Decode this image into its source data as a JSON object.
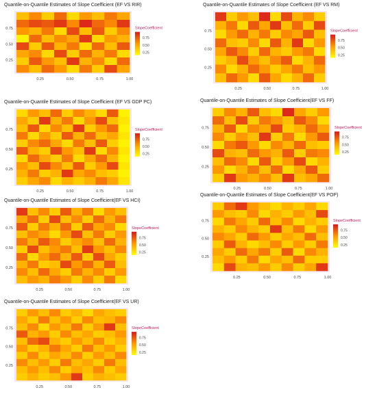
{
  "legend": {
    "title": "SlopeCoefficient",
    "ticks": [
      "0.75",
      "0.50",
      "0.25"
    ],
    "colors": {
      "low": "#ffff00",
      "mid": "#ff9900",
      "high": "#d7191c"
    }
  },
  "axis_ticks": [
    "0.25",
    "0.50",
    "0.75",
    "1.00"
  ],
  "chart_data": [
    {
      "type": "heatmap",
      "title": "Quantile-on-Quantile Estimates of Slope Coefficient (EF VS RIR)",
      "xticks": [
        "0.25",
        "0.50",
        "0.75",
        "1.00"
      ],
      "yticks": [
        "0.75",
        "0.50",
        "0.25"
      ],
      "legend_title": "SlopeCoefficient",
      "legend_ticks": [
        "0.75",
        "0.50",
        "0.25"
      ],
      "cols": 9,
      "rows": 8,
      "values": [
        [
          0.4,
          0.6,
          0.35,
          0.7,
          0.3,
          0.55,
          0.4,
          0.65,
          0.5
        ],
        [
          0.7,
          0.8,
          0.75,
          0.85,
          0.6,
          0.9,
          0.7,
          0.6,
          0.85
        ],
        [
          0.55,
          0.45,
          0.65,
          0.3,
          0.8,
          0.4,
          0.75,
          0.35,
          0.6
        ],
        [
          0.2,
          0.7,
          0.4,
          0.6,
          0.5,
          0.85,
          0.3,
          0.55,
          0.45
        ],
        [
          0.8,
          0.35,
          0.75,
          0.45,
          0.65,
          0.3,
          0.7,
          0.4,
          0.75
        ],
        [
          0.5,
          0.6,
          0.3,
          0.8,
          0.35,
          0.7,
          0.45,
          0.65,
          0.3
        ],
        [
          0.35,
          0.75,
          0.55,
          0.4,
          0.85,
          0.45,
          0.6,
          0.3,
          0.7
        ],
        [
          0.6,
          0.4,
          0.7,
          0.55,
          0.3,
          0.65,
          0.35,
          0.8,
          0.5
        ]
      ]
    },
    {
      "type": "heatmap",
      "title": "Quantile-on-Quantile Estimates of Slope Coefficient (EF VS RM)",
      "xticks": [
        "0.25",
        "0.50",
        "0.75",
        "1.00"
      ],
      "yticks": [
        "0.75",
        "0.50",
        "0.25"
      ],
      "legend_title": "SlopeCoefficient",
      "legend_ticks": [
        "0.75",
        "0.50",
        "0.25"
      ],
      "cols": 10,
      "rows": 8,
      "values": [
        [
          0.85,
          0.35,
          0.55,
          0.4,
          0.9,
          0.3,
          0.8,
          0.45,
          0.6,
          0.35
        ],
        [
          0.45,
          0.65,
          0.3,
          0.75,
          0.5,
          0.85,
          0.4,
          0.7,
          0.35,
          0.8
        ],
        [
          0.3,
          0.55,
          0.7,
          0.45,
          0.65,
          0.35,
          0.6,
          0.5,
          0.75,
          0.4
        ],
        [
          0.7,
          0.4,
          0.35,
          0.6,
          0.3,
          0.75,
          0.45,
          0.85,
          0.3,
          0.55
        ],
        [
          0.5,
          0.75,
          0.6,
          0.35,
          0.7,
          0.45,
          0.35,
          0.55,
          0.65,
          0.3
        ],
        [
          0.35,
          0.45,
          0.8,
          0.55,
          0.4,
          0.6,
          0.75,
          0.3,
          0.45,
          0.7
        ],
        [
          0.6,
          0.3,
          0.45,
          0.7,
          0.55,
          0.35,
          0.5,
          0.65,
          0.4,
          0.55
        ],
        [
          0.4,
          0.7,
          0.55,
          0.3,
          0.75,
          0.5,
          0.3,
          0.45,
          0.7,
          0.35
        ]
      ]
    },
    {
      "type": "heatmap",
      "title": "Quantile-on-Quantile Estimates of Slope Coefficient (EF VS GDP PC)",
      "xticks": [
        "0.25",
        "0.50",
        "0.75",
        "1.00"
      ],
      "yticks": [
        "0.75",
        "0.50",
        "0.25"
      ],
      "legend_title": "SlopeCoefficient",
      "legend_ticks": [
        "0.75",
        "0.50",
        "0.25"
      ],
      "cols": 10,
      "rows": 10,
      "values": [
        [
          0.3,
          0.55,
          0.4,
          0.7,
          0.35,
          0.6,
          0.45,
          0.3,
          0.75,
          0.2
        ],
        [
          0.5,
          0.35,
          0.85,
          0.45,
          0.65,
          0.3,
          0.55,
          0.8,
          0.4,
          0.25
        ],
        [
          0.4,
          0.75,
          0.3,
          0.6,
          0.4,
          0.85,
          0.35,
          0.55,
          0.7,
          0.2
        ],
        [
          0.65,
          0.3,
          0.55,
          0.35,
          0.75,
          0.45,
          0.7,
          0.4,
          0.5,
          0.25
        ],
        [
          0.35,
          0.6,
          0.7,
          0.5,
          0.3,
          0.65,
          0.4,
          0.75,
          0.35,
          0.2
        ],
        [
          0.75,
          0.45,
          0.35,
          0.8,
          0.55,
          0.4,
          0.85,
          0.3,
          0.6,
          0.25
        ],
        [
          0.3,
          0.7,
          0.5,
          0.35,
          0.65,
          0.3,
          0.5,
          0.7,
          0.45,
          0.2
        ],
        [
          0.55,
          0.4,
          0.8,
          0.6,
          0.4,
          0.75,
          0.35,
          0.55,
          0.8,
          0.25
        ],
        [
          0.45,
          0.65,
          0.35,
          0.45,
          0.85,
          0.5,
          0.6,
          0.4,
          0.35,
          0.2
        ],
        [
          0.35,
          0.5,
          0.6,
          0.3,
          0.45,
          0.35,
          0.45,
          0.65,
          0.5,
          0.25
        ]
      ]
    },
    {
      "type": "heatmap",
      "title": "Quantile-on-Quantile Estimates of Slope Coefficient(EF VS FF)",
      "xticks": [
        "0.25",
        "0.50",
        "0.75",
        "1.00"
      ],
      "yticks": [
        "0.75",
        "0.50",
        "0.25"
      ],
      "legend_title": "SlopeCoefficient",
      "legend_ticks": [
        "0.75",
        "0.50",
        "0.25"
      ],
      "cols": 10,
      "rows": 9,
      "values": [
        [
          0.35,
          0.6,
          0.45,
          0.75,
          0.4,
          0.3,
          0.9,
          0.5,
          0.35,
          0.55
        ],
        [
          0.7,
          0.4,
          0.8,
          0.35,
          0.65,
          0.55,
          0.4,
          0.75,
          0.6,
          0.3
        ],
        [
          0.45,
          0.75,
          0.3,
          0.6,
          0.5,
          0.8,
          0.35,
          0.45,
          0.7,
          0.5
        ],
        [
          0.6,
          0.35,
          0.55,
          0.4,
          0.85,
          0.35,
          0.65,
          0.3,
          0.55,
          0.75
        ],
        [
          0.3,
          0.65,
          0.75,
          0.55,
          0.3,
          0.6,
          0.45,
          0.7,
          0.4,
          0.35
        ],
        [
          0.8,
          0.45,
          0.4,
          0.7,
          0.55,
          0.45,
          0.75,
          0.35,
          0.65,
          0.6
        ],
        [
          0.4,
          0.7,
          0.6,
          0.3,
          0.75,
          0.35,
          0.55,
          0.8,
          0.3,
          0.45
        ],
        [
          0.55,
          0.3,
          0.45,
          0.65,
          0.4,
          0.7,
          0.3,
          0.5,
          0.75,
          0.35
        ],
        [
          0.35,
          0.85,
          0.55,
          0.45,
          0.6,
          0.4,
          0.85,
          0.4,
          0.5,
          0.7
        ]
      ]
    },
    {
      "type": "heatmap",
      "title": "Quantile-on-Quantile Estimates of Slope Coefficient(EF VS HCI)",
      "xticks": [
        "0.25",
        "0.50",
        "0.75",
        "1.00"
      ],
      "yticks": [
        "0.75",
        "0.50",
        "0.25"
      ],
      "legend_title": "SlopeCoefficient",
      "legend_ticks": [
        "0.75",
        "0.50",
        "0.25"
      ],
      "cols": 10,
      "rows": 10,
      "values": [
        [
          0.85,
          0.4,
          0.6,
          0.35,
          0.75,
          0.45,
          0.65,
          0.3,
          0.55,
          0.4
        ],
        [
          0.5,
          0.7,
          0.35,
          0.8,
          0.4,
          0.6,
          0.35,
          0.7,
          0.45,
          0.65
        ],
        [
          0.75,
          0.35,
          0.65,
          0.45,
          0.7,
          0.35,
          0.75,
          0.5,
          0.6,
          0.3
        ],
        [
          0.4,
          0.6,
          0.5,
          0.3,
          0.55,
          0.8,
          0.4,
          0.65,
          0.35,
          0.55
        ],
        [
          0.65,
          0.45,
          0.75,
          0.6,
          0.35,
          0.5,
          0.6,
          0.4,
          0.7,
          0.45
        ],
        [
          0.35,
          0.8,
          0.4,
          0.55,
          0.65,
          0.4,
          0.85,
          0.55,
          0.4,
          0.6
        ],
        [
          0.7,
          0.3,
          0.55,
          0.7,
          0.45,
          0.75,
          0.35,
          0.8,
          0.5,
          0.35
        ],
        [
          0.45,
          0.65,
          0.35,
          0.4,
          0.8,
          0.55,
          0.7,
          0.45,
          0.75,
          0.4
        ],
        [
          0.6,
          0.4,
          0.7,
          0.5,
          0.35,
          0.65,
          0.45,
          0.6,
          0.35,
          0.55
        ],
        [
          0.4,
          0.55,
          0.45,
          0.65,
          0.55,
          0.35,
          0.6,
          0.35,
          0.65,
          0.3
        ]
      ]
    },
    {
      "type": "heatmap",
      "title": "Quantile-on-Quantile Estimates of Slope Coefficient(EF VS POP)",
      "xticks": [
        "0.25",
        "0.50",
        "0.75",
        "1.00"
      ],
      "yticks": [
        "0.75",
        "0.50",
        "0.25"
      ],
      "legend_title": "SlopeCoefficient",
      "legend_ticks": [
        "0.75",
        "0.50",
        "0.25"
      ],
      "cols": 10,
      "rows": 9,
      "values": [
        [
          0.35,
          0.7,
          0.85,
          0.55,
          0.4,
          0.3,
          0.45,
          0.35,
          0.5,
          0.3
        ],
        [
          0.55,
          0.4,
          0.35,
          0.6,
          0.3,
          0.45,
          0.35,
          0.55,
          0.4,
          0.8
        ],
        [
          0.3,
          0.65,
          0.5,
          0.35,
          0.7,
          0.4,
          0.6,
          0.3,
          0.45,
          0.35
        ],
        [
          0.45,
          0.35,
          0.6,
          0.45,
          0.35,
          0.85,
          0.4,
          0.65,
          0.3,
          0.55
        ],
        [
          0.6,
          0.5,
          0.35,
          0.7,
          0.55,
          0.35,
          0.5,
          0.4,
          0.7,
          0.4
        ],
        [
          0.35,
          0.75,
          0.45,
          0.3,
          0.4,
          0.6,
          0.35,
          0.55,
          0.35,
          0.65
        ],
        [
          0.5,
          0.35,
          0.7,
          0.5,
          0.65,
          0.35,
          0.75,
          0.3,
          0.6,
          0.45
        ],
        [
          0.4,
          0.55,
          0.35,
          0.65,
          0.3,
          0.5,
          0.4,
          0.7,
          0.35,
          0.35
        ],
        [
          0.3,
          0.8,
          0.45,
          0.4,
          0.55,
          0.35,
          0.6,
          0.35,
          0.5,
          0.85
        ]
      ]
    },
    {
      "type": "heatmap",
      "title": "Quantile-on-Quantile Estimates of Slope Coefficient(EF VS UR)",
      "xticks": [
        "0.25",
        "0.50",
        "0.75",
        "1.00"
      ],
      "yticks": [
        "0.75",
        "0.50",
        "0.25"
      ],
      "legend_title": "SlopeCoefficient",
      "legend_ticks": [
        "0.75",
        "0.50",
        "0.25"
      ],
      "cols": 10,
      "rows": 10,
      "values": [
        [
          0.35,
          0.55,
          0.4,
          0.6,
          0.35,
          0.45,
          0.3,
          0.5,
          0.4,
          0.35
        ],
        [
          0.5,
          0.35,
          0.65,
          0.4,
          0.55,
          0.35,
          0.6,
          0.4,
          0.45,
          0.6
        ],
        [
          0.4,
          0.6,
          0.3,
          0.55,
          0.4,
          0.65,
          0.35,
          0.55,
          0.85,
          0.4
        ],
        [
          0.75,
          0.45,
          0.55,
          0.35,
          0.6,
          0.4,
          0.5,
          0.35,
          0.4,
          0.55
        ],
        [
          0.4,
          0.7,
          0.8,
          0.45,
          0.35,
          0.55,
          0.4,
          0.6,
          0.35,
          0.45
        ],
        [
          0.55,
          0.35,
          0.45,
          0.65,
          0.5,
          0.35,
          0.65,
          0.4,
          0.55,
          0.35
        ],
        [
          0.35,
          0.6,
          0.35,
          0.5,
          0.4,
          0.6,
          0.35,
          0.55,
          0.4,
          0.6
        ],
        [
          0.6,
          0.4,
          0.55,
          0.35,
          0.65,
          0.4,
          0.5,
          0.35,
          0.65,
          0.4
        ],
        [
          0.4,
          0.55,
          0.4,
          0.6,
          0.35,
          0.5,
          0.4,
          0.6,
          0.35,
          0.5
        ],
        [
          0.35,
          0.45,
          0.35,
          0.4,
          0.55,
          0.85,
          0.35,
          0.45,
          0.4,
          0.35
        ]
      ]
    }
  ]
}
